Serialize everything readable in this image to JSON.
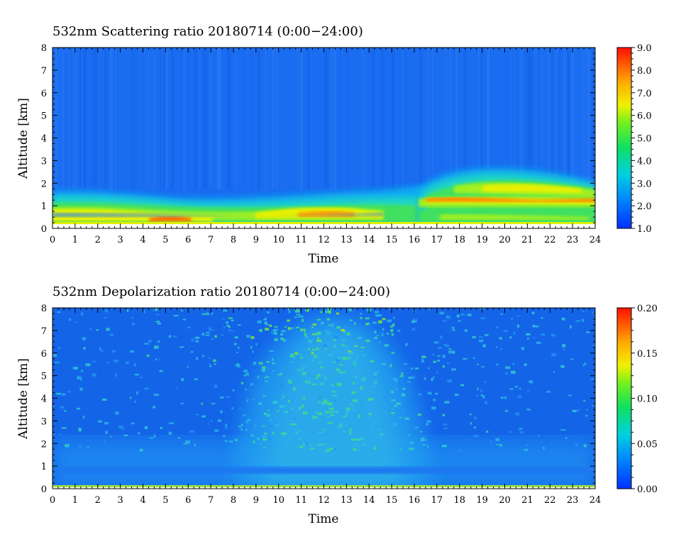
{
  "chart_data": [
    {
      "type": "heatmap",
      "title": "532nm Scattering ratio  20180714 (0:00−24:00)",
      "xlabel": "Time",
      "ylabel": "Altitude [km]",
      "xlim": [
        0,
        24
      ],
      "ylim": [
        0,
        8
      ],
      "x_ticks": [
        "0",
        "1",
        "2",
        "3",
        "4",
        "5",
        "6",
        "7",
        "8",
        "9",
        "10",
        "11",
        "12",
        "13",
        "14",
        "15",
        "16",
        "17",
        "18",
        "19",
        "20",
        "21",
        "22",
        "23",
        "24"
      ],
      "y_ticks": [
        "0",
        "1",
        "2",
        "3",
        "4",
        "5",
        "6",
        "7",
        "8"
      ],
      "colorbar": {
        "min": 1.0,
        "max": 9.0,
        "ticks": [
          "1.0",
          "2.0",
          "3.0",
          "4.0",
          "5.0",
          "6.0",
          "7.0",
          "8.0",
          "9.0"
        ]
      },
      "background_value": 1.9,
      "features": [
        {
          "description": "aerosol boundary layer",
          "x_range": [
            0,
            16.5
          ],
          "y_range": [
            0.2,
            1.5
          ],
          "peak_value": 7.5
        },
        {
          "description": "elevated aerosol layer",
          "x_range": [
            16.5,
            24
          ],
          "y_range": [
            0.2,
            2.6
          ],
          "peak_value": 7.5
        }
      ]
    },
    {
      "type": "heatmap",
      "title": "532nm Depolarization ratio  20180714 (0:00−24:00)",
      "xlabel": "Time",
      "ylabel": "Altitude [km]",
      "xlim": [
        0,
        24
      ],
      "ylim": [
        0,
        8
      ],
      "x_ticks": [
        "0",
        "1",
        "2",
        "3",
        "4",
        "5",
        "6",
        "7",
        "8",
        "9",
        "10",
        "11",
        "12",
        "13",
        "14",
        "15",
        "16",
        "17",
        "18",
        "19",
        "20",
        "21",
        "22",
        "23",
        "24"
      ],
      "y_ticks": [
        "0",
        "1",
        "2",
        "3",
        "4",
        "5",
        "6",
        "7",
        "8"
      ],
      "colorbar": {
        "min": 0.0,
        "max": 0.2,
        "ticks": [
          "0.00",
          "0.05",
          "0.10",
          "0.15",
          "0.20"
        ]
      },
      "background_value": 0.025,
      "features": [
        {
          "description": "daytime noise increase",
          "x_range": [
            9,
            15.5
          ],
          "y_range": [
            0,
            8
          ],
          "peak_value": 0.08
        },
        {
          "description": "near-ground layer",
          "x_range": [
            0,
            24
          ],
          "y_range": [
            0,
            0.1
          ],
          "peak_value": 0.1
        }
      ]
    }
  ]
}
